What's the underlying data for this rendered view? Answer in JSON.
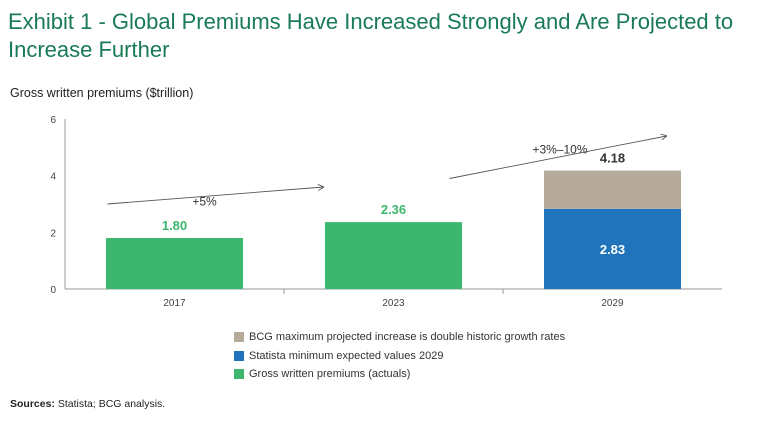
{
  "title": "Exhibit 1 - Global Premiums Have Increased Strongly and Are Projected to Increase Further",
  "colors": {
    "title": "#197a56",
    "green": "#3cb86e",
    "blue": "#1f74bb",
    "tan": "#b6aa9a",
    "axis": "#999999",
    "text": "#333333"
  },
  "chart_data": {
    "type": "bar",
    "stacked": true,
    "subtitle": "Gross written premiums ($trillion)",
    "categories": [
      "2017",
      "2023",
      "2029"
    ],
    "ylim": [
      0,
      6
    ],
    "yticks": [
      0,
      2,
      4,
      6
    ],
    "series": [
      {
        "name": "Gross written premiums (actuals)",
        "color_key": "green",
        "values": [
          1.8,
          2.36,
          null
        ]
      },
      {
        "name": "Statista minimum expected values 2029",
        "color_key": "blue",
        "values": [
          null,
          null,
          2.83
        ]
      },
      {
        "name": "BCG maximum projected increase is double historic growth rates",
        "color_key": "tan",
        "values": [
          null,
          null,
          1.35
        ]
      }
    ],
    "data_labels": [
      {
        "category": "2017",
        "text": "1.80",
        "value": 1.8,
        "placement": "above",
        "color_key": "green"
      },
      {
        "category": "2023",
        "text": "2.36",
        "value": 2.36,
        "placement": "above",
        "color_key": "green"
      },
      {
        "category": "2029",
        "text": "2.83",
        "value": 2.83,
        "placement": "inside",
        "color_key": "white"
      },
      {
        "category": "2029",
        "text": "4.18",
        "value": 4.18,
        "placement": "above",
        "color_key": "text"
      }
    ],
    "annotations": [
      {
        "text": "+5%",
        "from_category": "2017",
        "to_category": "2023",
        "from_value": 3.0,
        "to_value": 3.6
      },
      {
        "text": "+3%–10%",
        "from_category": "2023",
        "to_category": "2029",
        "from_value": 3.9,
        "to_value": 5.4
      }
    ],
    "legend": [
      {
        "label": "BCG maximum projected increase is double historic growth rates",
        "color_key": "tan"
      },
      {
        "label": "Statista minimum expected values 2029",
        "color_key": "blue"
      },
      {
        "label": "Gross written premiums (actuals)",
        "color_key": "green"
      }
    ]
  },
  "sources": {
    "label": "Sources:",
    "text": " Statista; BCG analysis."
  }
}
